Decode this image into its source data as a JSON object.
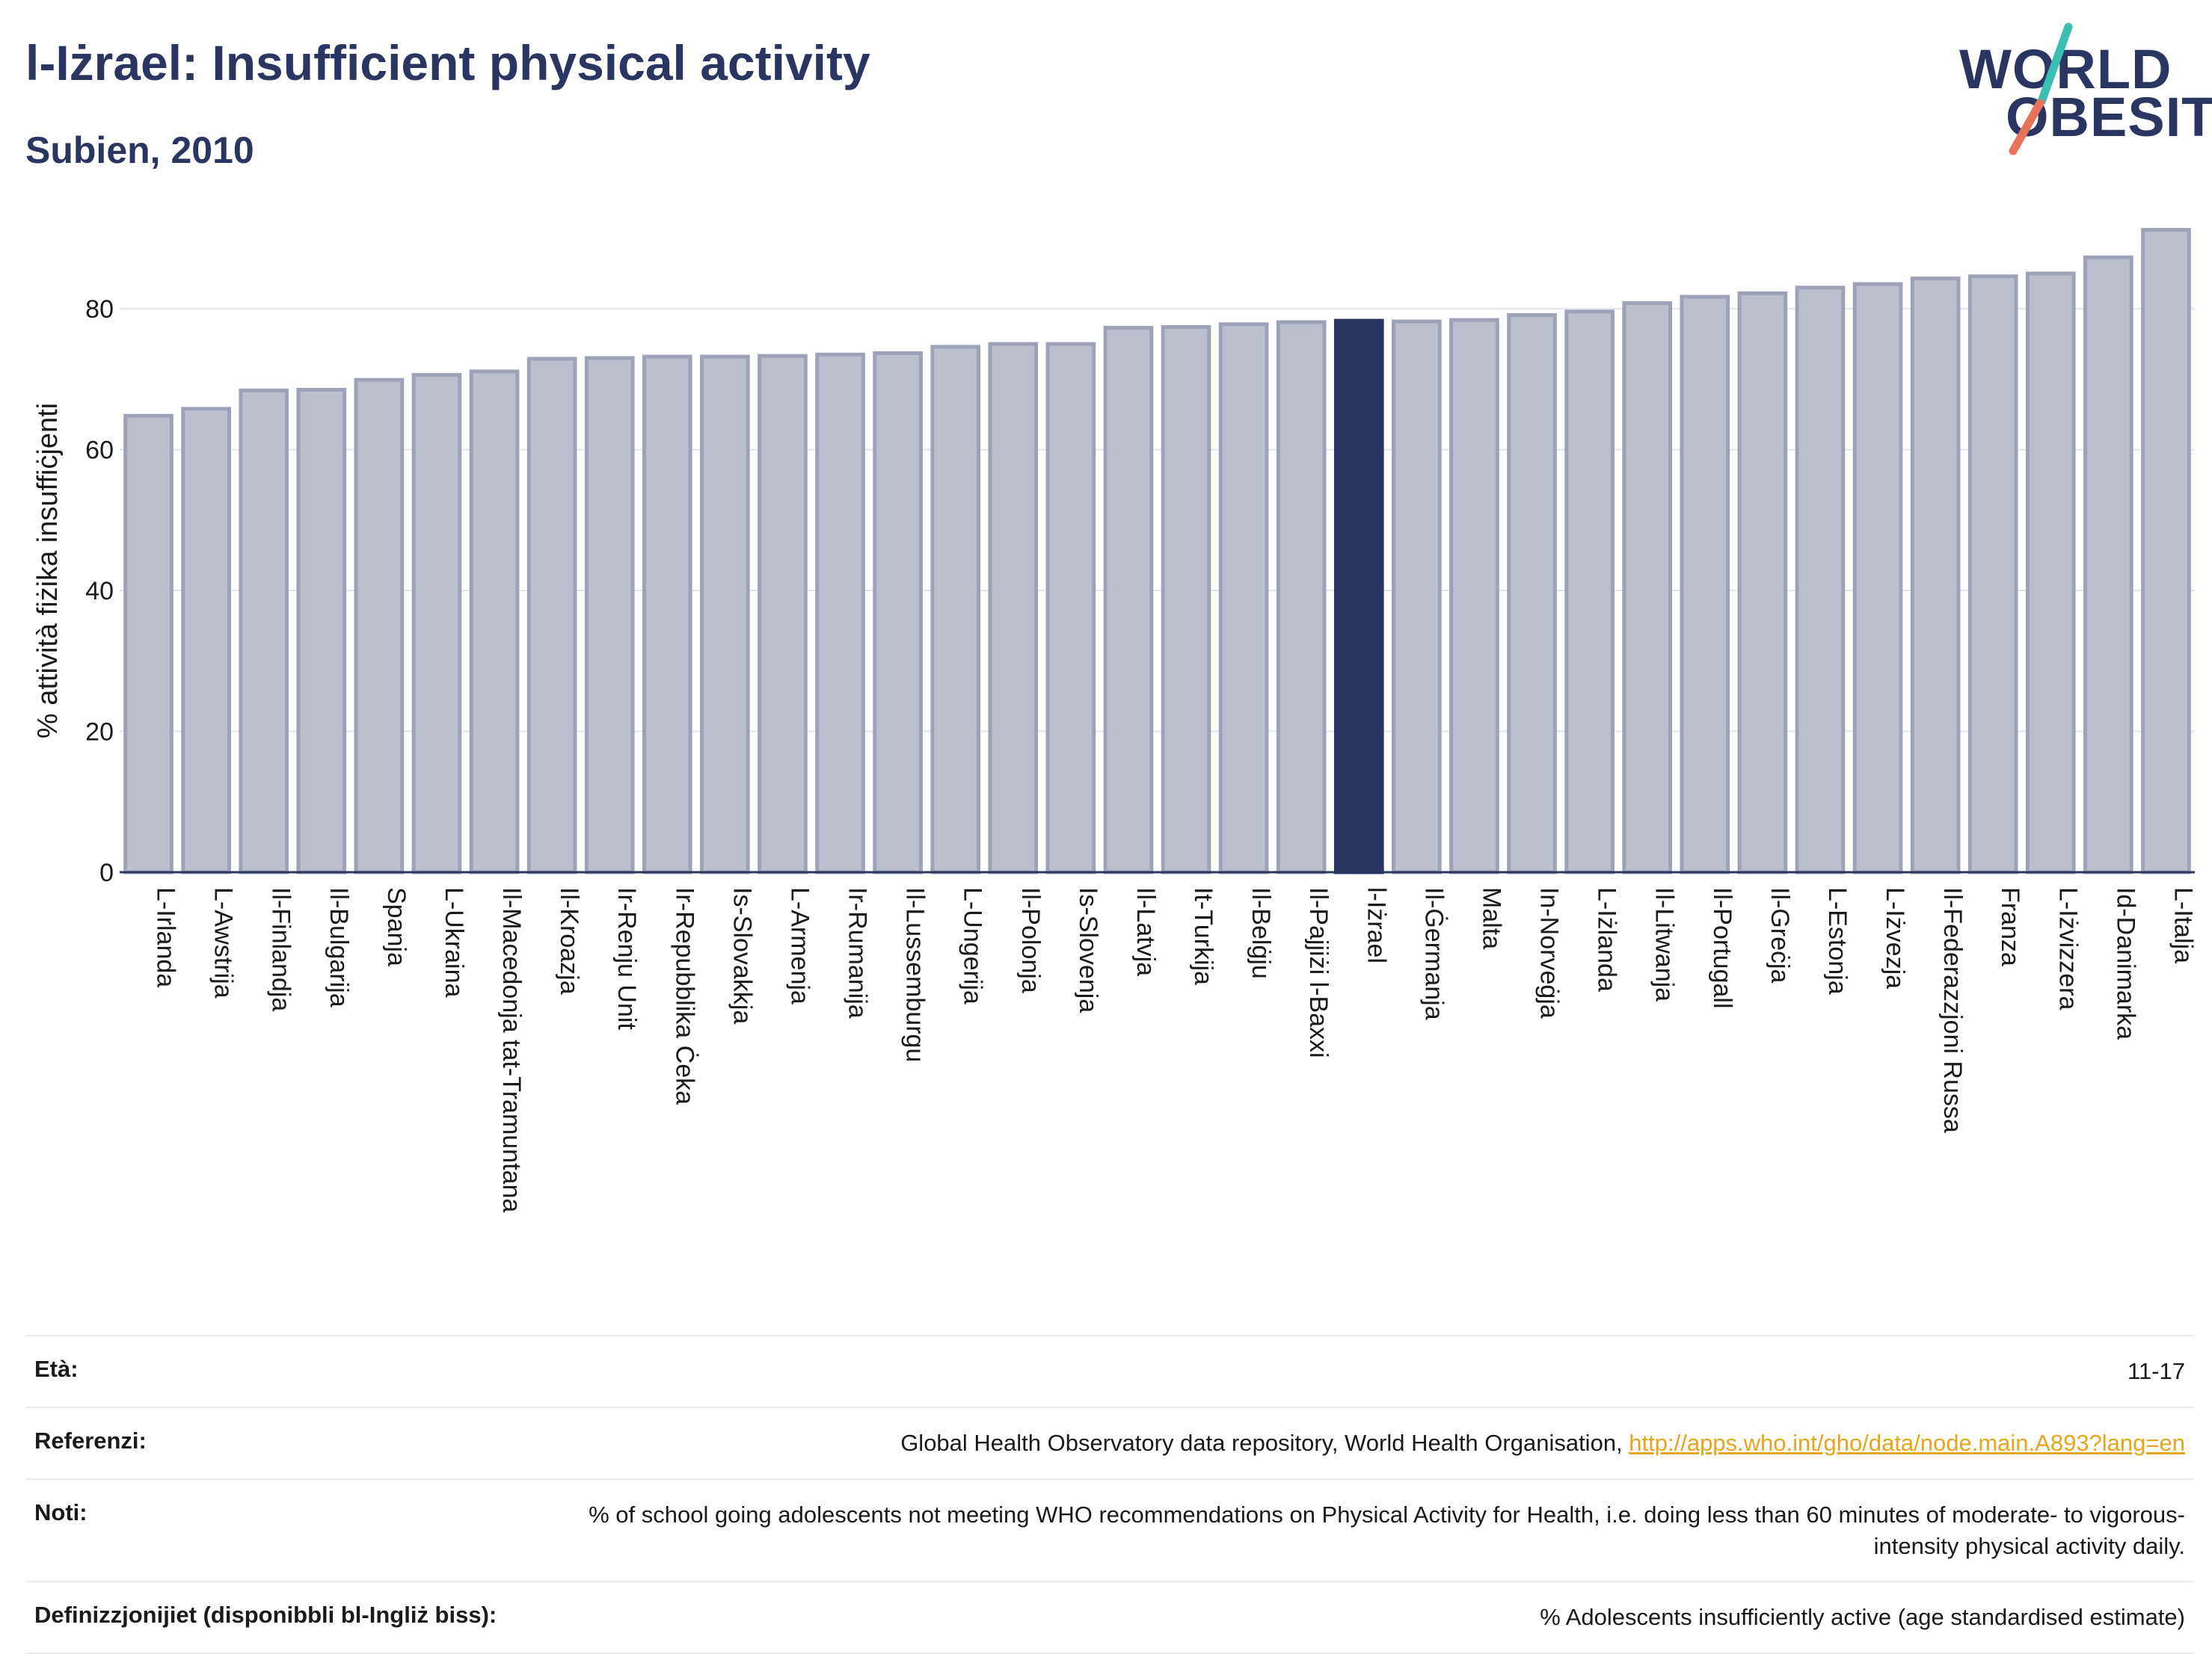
{
  "header": {
    "title": "l-Iżrael: Insufficient physical activity",
    "subtitle": "Subien, 2010"
  },
  "logo": {
    "line1": "WORLD",
    "line2": "OBESITY",
    "slash_colors": [
      "#3bbfb2",
      "#e8735a"
    ]
  },
  "chart_data": {
    "type": "bar",
    "ylabel": "% attività fiżika insuffiċjenti",
    "ylim": [
      0,
      92
    ],
    "yticks": [
      0,
      20,
      40,
      60,
      80
    ],
    "grid": true,
    "highlight": "l-Iżrael",
    "colors": {
      "bar": "#bcc0cd",
      "bar_edge": "#9da2b8",
      "highlight": "#2b3562",
      "grid": "#e3e5ec"
    },
    "categories": [
      "L-Irlanda",
      "L-Awstrija",
      "Il-Finlandja",
      "Il-Bulgarija",
      "Spanja",
      "L-Ukraina",
      "Il-Macedonja tat-Tramuntana",
      "Il-Kroazja",
      "Ir-Renju Unit",
      "Ir-Repubblika Ċeka",
      "Is-Slovakkja",
      "L-Armenja",
      "Ir-Rumanija",
      "Il-Lussemburgu",
      "L-Ungerija",
      "Il-Polonja",
      "Is-Slovenja",
      "Il-Latvja",
      "It-Turkija",
      "Il-Belġju",
      "Il-Pajjiżi l-Baxxi",
      "l-Iżrael",
      "Il-Ġermanja",
      "Malta",
      "In-Norveġja",
      "L-Iżlanda",
      "Il-Litwanja",
      "Il-Portugall",
      "Il-Greċja",
      "L-Estonja",
      "L-Iżvezja",
      "Il-Federazzjoni Russa",
      "Franza",
      "L-Iżvizzera",
      "Id-Danimarka",
      "L-Italja"
    ],
    "values": [
      64.8,
      65.8,
      68.4,
      68.5,
      69.9,
      70.6,
      71.1,
      72.9,
      73.0,
      73.2,
      73.2,
      73.3,
      73.5,
      73.7,
      74.6,
      75.0,
      75.0,
      77.3,
      77.4,
      77.8,
      78.1,
      78.3,
      78.2,
      78.4,
      79.1,
      79.6,
      80.8,
      81.7,
      82.2,
      83.0,
      83.5,
      84.3,
      84.6,
      85.0,
      87.3,
      91.2
    ]
  },
  "info": {
    "rows": [
      {
        "label": "Età:",
        "value": "11-17"
      },
      {
        "label": "Referenzi:",
        "value": "Global Health Observatory data repository, World Health Organisation, ",
        "link": "http://apps.who.int/gho/data/node.main.A893?lang=en"
      },
      {
        "label": "Noti:",
        "value": "% of school going adolescents not meeting WHO recommendations on Physical Activity for Health, i.e. doing less than 60 minutes of moderate- to vigorous-intensity physical activity daily."
      },
      {
        "label": "Definizzjonijiet (disponibbli bl-Ingliż biss):",
        "value": "% Adolescents insufficiently active (age standardised estimate)"
      }
    ]
  }
}
